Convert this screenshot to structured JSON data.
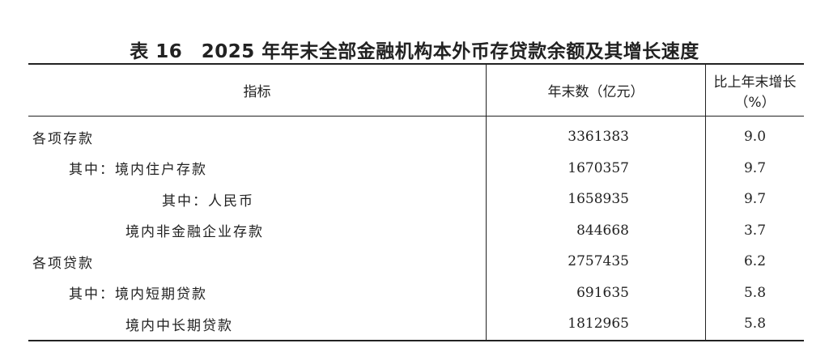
{
  "title": "表 16　2025 年年末全部金融机构本外币存贷款余额及其增长速度",
  "headers": [
    "指标",
    "年末数（亿元）",
    "比上年末增长（%）"
  ],
  "rows": [
    {
      "label": "各项存款",
      "value": "3361383",
      "growth": "9.0"
    },
    {
      "label": "其中：境内住户存款",
      "value": "1670357",
      "growth": "9.7"
    },
    {
      "label": "其中：人民币",
      "value": "1658935",
      "growth": "9.7"
    },
    {
      "label": "境内非金融企业存款",
      "value": "844668",
      "growth": "3.7"
    },
    {
      "label": "各项贷款",
      "value": "2757435",
      "growth": "6.2"
    },
    {
      "label": "其中：境内短期贷款",
      "value": "691635",
      "growth": "5.8"
    },
    {
      "label": "境内中长期贷款",
      "value": "1812965",
      "growth": "5.8"
    }
  ]
}
